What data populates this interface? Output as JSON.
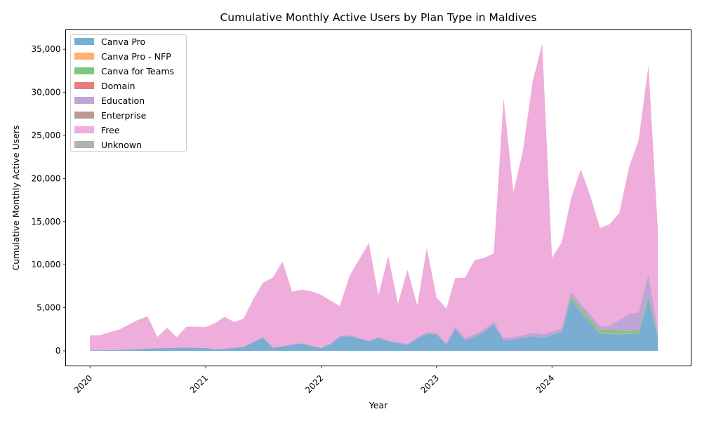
{
  "chart_data": {
    "type": "area",
    "stacked": true,
    "title": "Cumulative Monthly Active Users by Plan Type in Maldives",
    "xlabel": "Year",
    "ylabel": "Cumulative Monthly Active Users",
    "ylim": [
      -1750,
      37250
    ],
    "yticks": [
      0,
      5000,
      10000,
      15000,
      20000,
      25000,
      30000,
      35000
    ],
    "ytick_labels": [
      "0",
      "5,000",
      "10,000",
      "15,000",
      "20,000",
      "25,000",
      "30,000",
      "35,000"
    ],
    "xlim": [
      "2019-10-16",
      "2025-03-16"
    ],
    "xticks": [
      "2020-01-01",
      "2021-01-01",
      "2022-01-01",
      "2023-01-01",
      "2024-01-01"
    ],
    "xtick_labels": [
      "2020",
      "2021",
      "2022",
      "2023",
      "2024"
    ],
    "legend_position": "top-left",
    "grid": false,
    "dates": [
      "2020-01-01",
      "2020-02-01",
      "2020-03-01",
      "2020-04-01",
      "2020-05-01",
      "2020-06-01",
      "2020-07-01",
      "2020-08-01",
      "2020-09-01",
      "2020-10-01",
      "2020-11-01",
      "2020-12-01",
      "2021-01-01",
      "2021-02-01",
      "2021-03-01",
      "2021-04-01",
      "2021-05-01",
      "2021-06-01",
      "2021-07-01",
      "2021-08-01",
      "2021-09-01",
      "2021-10-01",
      "2021-11-01",
      "2021-12-01",
      "2022-01-01",
      "2022-02-01",
      "2022-03-01",
      "2022-04-01",
      "2022-05-01",
      "2022-06-01",
      "2022-07-01",
      "2022-08-01",
      "2022-09-01",
      "2022-10-01",
      "2022-11-01",
      "2022-12-01",
      "2023-01-01",
      "2023-02-01",
      "2023-03-01",
      "2023-04-01",
      "2023-05-01",
      "2023-06-01",
      "2023-07-01",
      "2023-08-01",
      "2023-09-01",
      "2023-10-01",
      "2023-11-01",
      "2023-12-01",
      "2024-01-01",
      "2024-02-01",
      "2024-03-01",
      "2024-04-01",
      "2024-05-01",
      "2024-06-01",
      "2024-07-01",
      "2024-08-01",
      "2024-09-01",
      "2024-10-01",
      "2024-11-01",
      "2024-12-01"
    ],
    "series": [
      {
        "name": "Canva Pro",
        "color": "#1f77b4",
        "values": [
          50,
          60,
          80,
          110,
          150,
          200,
          260,
          300,
          330,
          360,
          370,
          360,
          330,
          180,
          250,
          350,
          450,
          1000,
          1500,
          350,
          500,
          700,
          850,
          550,
          300,
          800,
          1600,
          1700,
          1400,
          1100,
          1500,
          1100,
          900,
          700,
          1400,
          2000,
          1900,
          700,
          2500,
          1200,
          1600,
          2200,
          3000,
          1200,
          1300,
          1500,
          1700,
          1500,
          1800,
          2200,
          6000,
          4500,
          3300,
          2000,
          2000,
          1900,
          2000,
          2000,
          6000,
          1500
        ]
      },
      {
        "name": "Canva Pro - NFP",
        "color": "#ff7f0e",
        "values": [
          0,
          0,
          0,
          0,
          0,
          0,
          0,
          0,
          0,
          0,
          0,
          0,
          0,
          0,
          0,
          0,
          0,
          0,
          0,
          0,
          0,
          0,
          0,
          0,
          0,
          0,
          0,
          0,
          0,
          0,
          0,
          0,
          0,
          0,
          0,
          0,
          0,
          0,
          0,
          0,
          0,
          0,
          0,
          0,
          0,
          0,
          0,
          0,
          0,
          0,
          50,
          50,
          50,
          50,
          50,
          50,
          50,
          50,
          50,
          50
        ]
      },
      {
        "name": "Canva for Teams",
        "color": "#2ca02c",
        "values": [
          0,
          0,
          0,
          0,
          0,
          0,
          0,
          0,
          0,
          0,
          0,
          0,
          0,
          0,
          0,
          0,
          0,
          0,
          0,
          0,
          0,
          0,
          0,
          0,
          0,
          0,
          0,
          0,
          0,
          0,
          0,
          0,
          0,
          0,
          0,
          0,
          0,
          0,
          0,
          0,
          0,
          0,
          0,
          0,
          0,
          0,
          0,
          0,
          0,
          0,
          300,
          400,
          350,
          350,
          400,
          350,
          300,
          300,
          250,
          200
        ]
      },
      {
        "name": "Domain",
        "color": "#d62728",
        "values": [
          0,
          0,
          0,
          0,
          0,
          0,
          0,
          0,
          0,
          0,
          0,
          0,
          0,
          0,
          0,
          0,
          0,
          0,
          0,
          0,
          0,
          0,
          0,
          0,
          0,
          0,
          0,
          0,
          0,
          0,
          0,
          0,
          0,
          0,
          0,
          0,
          0,
          0,
          0,
          0,
          0,
          0,
          0,
          0,
          0,
          0,
          0,
          0,
          0,
          0,
          0,
          0,
          0,
          0,
          0,
          0,
          0,
          0,
          0,
          0
        ]
      },
      {
        "name": "Education",
        "color": "#9467bd",
        "values": [
          0,
          0,
          0,
          0,
          0,
          0,
          0,
          0,
          0,
          0,
          0,
          0,
          0,
          0,
          0,
          0,
          0,
          50,
          100,
          50,
          50,
          50,
          50,
          50,
          50,
          100,
          100,
          100,
          100,
          100,
          100,
          100,
          100,
          100,
          150,
          150,
          200,
          150,
          300,
          300,
          300,
          300,
          400,
          300,
          300,
          300,
          400,
          400,
          400,
          400,
          500,
          500,
          500,
          450,
          450,
          1300,
          1900,
          2100,
          2600,
          400
        ]
      },
      {
        "name": "Enterprise",
        "color": "#8c564b",
        "values": [
          0,
          0,
          0,
          0,
          0,
          0,
          0,
          0,
          0,
          0,
          0,
          0,
          0,
          0,
          0,
          0,
          0,
          0,
          0,
          0,
          0,
          0,
          0,
          0,
          0,
          0,
          0,
          0,
          0,
          0,
          0,
          0,
          0,
          0,
          0,
          0,
          0,
          0,
          0,
          0,
          0,
          0,
          0,
          0,
          0,
          0,
          0,
          0,
          0,
          0,
          0,
          0,
          0,
          0,
          0,
          0,
          0,
          0,
          0,
          0
        ]
      },
      {
        "name": "Free",
        "color": "#e377c2",
        "values": [
          1750,
          1740,
          2070,
          2340,
          2850,
          3400,
          3740,
          1300,
          2370,
          1240,
          2430,
          2440,
          2420,
          3070,
          3700,
          3000,
          3300,
          5000,
          6300,
          8100,
          9800,
          6100,
          6200,
          6300,
          6150,
          4900,
          3500,
          6900,
          9100,
          11300,
          4800,
          9800,
          4500,
          8600,
          3700,
          9800,
          4100,
          4050,
          5650,
          7000,
          8600,
          8300,
          7900,
          27800,
          16800,
          21400,
          29200,
          33700,
          8600,
          10000,
          10800,
          15600,
          13800,
          11400,
          11800,
          12400,
          17100,
          20000,
          24200,
          11800
        ]
      },
      {
        "name": "Unknown",
        "color": "#7f7f7f",
        "values": [
          0,
          0,
          0,
          0,
          0,
          0,
          0,
          0,
          0,
          0,
          0,
          0,
          0,
          0,
          0,
          0,
          0,
          0,
          0,
          0,
          0,
          0,
          0,
          0,
          0,
          0,
          0,
          0,
          0,
          0,
          0,
          0,
          0,
          0,
          0,
          0,
          0,
          0,
          0,
          0,
          0,
          0,
          0,
          0,
          0,
          0,
          0,
          0,
          0,
          0,
          0,
          0,
          0,
          0,
          0,
          0,
          0,
          0,
          0,
          0
        ]
      }
    ]
  }
}
